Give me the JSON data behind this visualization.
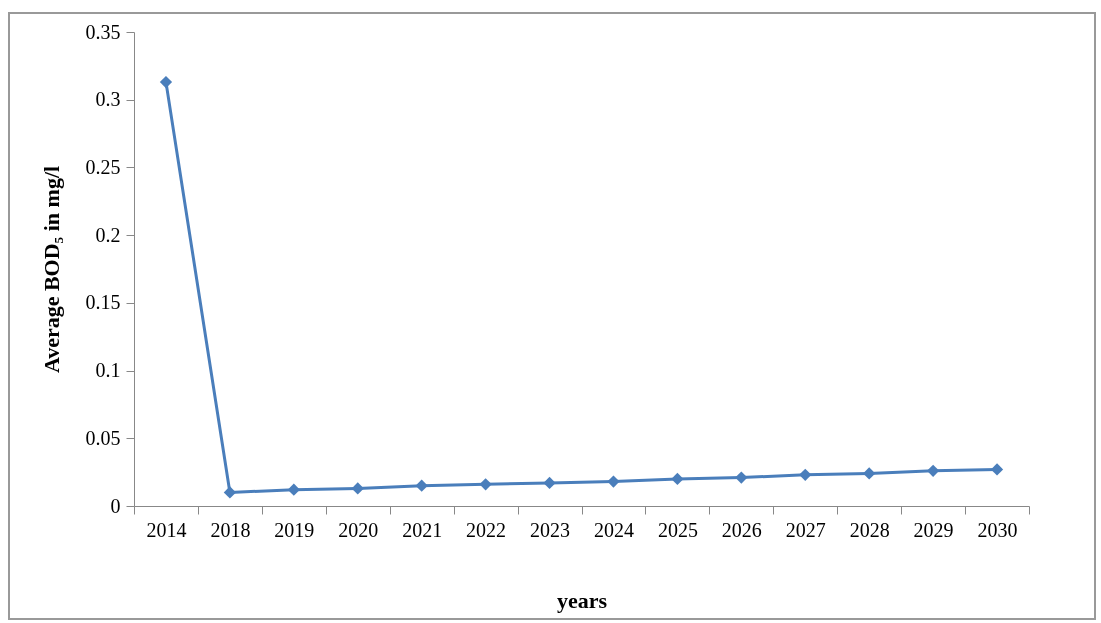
{
  "chart_data": {
    "type": "line",
    "xlabel": "years",
    "ylabel": "Average BOD₅ in mg/l",
    "categories": [
      "2014",
      "2018",
      "2019",
      "2020",
      "2021",
      "2022",
      "2023",
      "2024",
      "2025",
      "2026",
      "2027",
      "2028",
      "2029",
      "2030"
    ],
    "series": [
      {
        "color": "#4a7ebb",
        "values": [
          0.313,
          0.01,
          0.012,
          0.013,
          0.015,
          0.016,
          0.017,
          0.018,
          0.02,
          0.021,
          0.023,
          0.024,
          0.026,
          0.027
        ]
      }
    ],
    "ylim": [
      0,
      0.35
    ],
    "yticks": [
      0,
      0.05,
      0.1,
      0.15,
      0.2,
      0.25,
      0.3,
      0.35
    ],
    "grid": false,
    "legend": false,
    "marker": "diamond",
    "line_style": "solid"
  }
}
